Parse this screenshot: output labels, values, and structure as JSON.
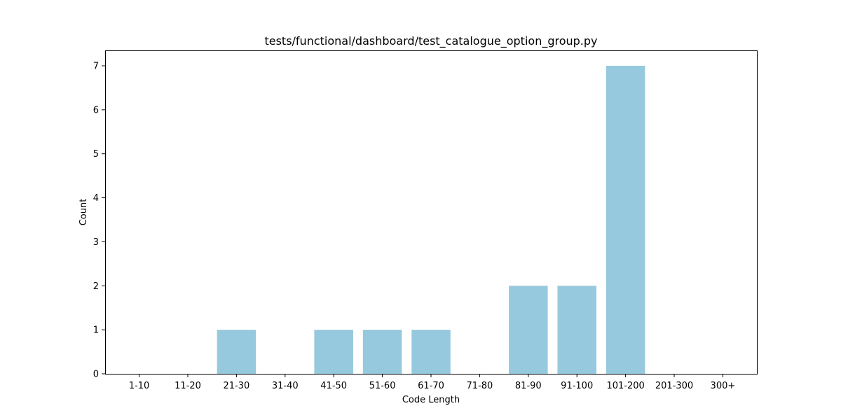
{
  "chart_data": {
    "type": "bar",
    "title": "tests/functional/dashboard/test_catalogue_option_group.py",
    "xlabel": "Code Length",
    "ylabel": "Count",
    "categories": [
      "1-10",
      "11-20",
      "21-30",
      "31-40",
      "41-50",
      "51-60",
      "61-70",
      "71-80",
      "81-90",
      "91-100",
      "101-200",
      "201-300",
      "300+"
    ],
    "values": [
      0,
      0,
      1,
      0,
      1,
      1,
      1,
      0,
      2,
      2,
      7,
      0,
      0
    ],
    "yticks": [
      0,
      1,
      2,
      3,
      4,
      5,
      6,
      7
    ],
    "ylim": [
      0,
      7.35
    ],
    "bar_color": "#96c9dd",
    "grid": false,
    "legend": "none"
  }
}
